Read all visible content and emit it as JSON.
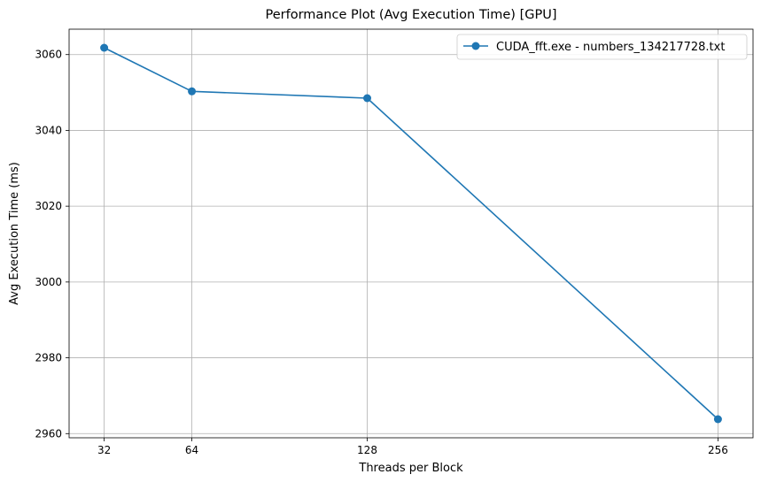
{
  "chart_data": {
    "type": "line",
    "title": "Performance Plot (Avg Execution Time) [GPU]",
    "xlabel": "Threads per Block",
    "ylabel": "Avg Execution Time (ms)",
    "x": [
      32,
      64,
      128,
      256
    ],
    "series": [
      {
        "name": "CUDA_fft.exe - numbers_134217728.txt",
        "values": [
          3061.8,
          3050.3,
          3048.5,
          2963.8
        ],
        "color": "#1f77b4",
        "marker": "circle"
      }
    ],
    "xticks": [
      32,
      64,
      128,
      256
    ],
    "xtick_labels": [
      "32",
      "64",
      "128",
      "256"
    ],
    "yticks": [
      2960,
      2980,
      3000,
      3020,
      3040,
      3060
    ],
    "ytick_labels": [
      "2960",
      "2980",
      "3000",
      "3020",
      "3040",
      "3060"
    ],
    "xlim": [
      19.2,
      268.8
    ],
    "ylim": [
      2958.9,
      3066.7
    ],
    "grid": true,
    "legend_position": "top-right"
  }
}
